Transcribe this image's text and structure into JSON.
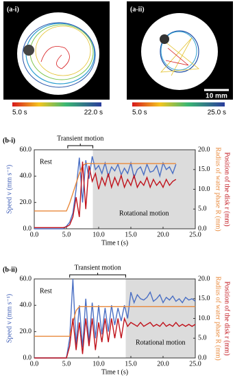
{
  "photos": [
    {
      "label": "(a-i)",
      "colorbar_start": "5.0 s",
      "colorbar_end": "22.0 s"
    },
    {
      "label": "(a-ii)",
      "colorbar_start": "5.0 s",
      "colorbar_end": "25.0 s",
      "scale_bar": "10 mm"
    }
  ],
  "chart_data": [
    {
      "type": "line",
      "panel_label": "(b-i)",
      "x": [
        0,
        0.5,
        1,
        1.5,
        2,
        2.5,
        3,
        3.5,
        4,
        4.5,
        5,
        5.5,
        6,
        6.5,
        7,
        7.5,
        8,
        8.5,
        9,
        9.5,
        10,
        10.5,
        11,
        11.5,
        12,
        12.5,
        13,
        13.5,
        14,
        14.5,
        15,
        15.5,
        16,
        16.5,
        17,
        17.5,
        18,
        18.5,
        19,
        19.5,
        20,
        20.5,
        21,
        21.5,
        22
      ],
      "series": [
        {
          "color": "#4a6fc4",
          "values": [
            0,
            0,
            0,
            0,
            0,
            0,
            0,
            0,
            0,
            0,
            2,
            5,
            12,
            30,
            54,
            20,
            52,
            38,
            55,
            45,
            48,
            42,
            50,
            40,
            47,
            44,
            49,
            41,
            46,
            42,
            50,
            39,
            45,
            47,
            41,
            49,
            43,
            44,
            48,
            40,
            50,
            45,
            47,
            42,
            49
          ]
        },
        {
          "color": "#e8883a",
          "axis": "y2",
          "values": [
            4.5,
            4.5,
            4.5,
            4.5,
            4.5,
            4.5,
            4.5,
            4.5,
            4.5,
            4.5,
            4.5,
            6.5,
            9,
            11.5,
            14,
            16,
            16.5,
            16.5,
            16.5,
            16.5,
            16.5,
            16.5,
            16.5,
            16.5,
            16.5,
            16.5,
            16.5,
            16.5,
            16.5,
            16.5,
            16.5,
            16.5,
            16.5,
            16.5,
            16.5,
            16.5,
            16.5,
            16.5,
            16.5,
            16.5,
            16.5,
            16.5,
            16.5,
            16.5,
            16.5
          ]
        },
        {
          "color": "#c0111a",
          "axis": "y2",
          "values": [
            0.3,
            0.3,
            0.3,
            0.3,
            0.3,
            0.3,
            0.3,
            0.3,
            0.3,
            0.3,
            0.5,
            1,
            3,
            8,
            3,
            17,
            5,
            16,
            12,
            14,
            10,
            13,
            11,
            14,
            10.5,
            13,
            11,
            13.5,
            10.5,
            12.5,
            11,
            13.5,
            10.5,
            12,
            11,
            13,
            10.5,
            12.5,
            11,
            12,
            10.5,
            12.5,
            11,
            12,
            12.5
          ]
        }
      ],
      "xlim": [
        0,
        25
      ],
      "xticks": [
        {
          "value": 0,
          "label": "0.0"
        },
        {
          "value": 5,
          "label": "5.0"
        },
        {
          "value": 10,
          "label": "10.0"
        },
        {
          "value": 15,
          "label": "15.0"
        },
        {
          "value": 20,
          "label": "20.0"
        },
        {
          "value": 25,
          "label": "25.0"
        }
      ],
      "ylim": [
        0,
        60
      ],
      "yticks": [
        {
          "value": 0,
          "label": "0.0"
        },
        {
          "value": 20,
          "label": "20.0"
        },
        {
          "value": 40,
          "label": "40.0"
        },
        {
          "value": 60,
          "label": "60.0"
        }
      ],
      "y2lim": [
        0,
        20
      ],
      "y2ticks": [
        {
          "value": 0,
          "label": "0.0"
        },
        {
          "value": 5,
          "label": "5.0"
        },
        {
          "value": 10,
          "label": "10.0"
        },
        {
          "value": 15,
          "label": "15.0"
        },
        {
          "value": 20,
          "label": "20.0"
        }
      ],
      "x_label": "Time t (s)",
      "y_label": "Speed v (mm s⁻¹)",
      "y2_labels": [
        "Radius of water phase R (mm)",
        "Position of the disk r (mm)"
      ],
      "annotations": {
        "rest": "Rest",
        "transient": "Transient motion",
        "rotational": "Rotational motion"
      },
      "shade_from": 9.1,
      "bracket": [
        5.2,
        9.1
      ]
    },
    {
      "type": "line",
      "panel_label": "(b-ii)",
      "x": [
        0,
        0.5,
        1,
        1.5,
        2,
        2.5,
        3,
        3.5,
        4,
        4.5,
        5,
        5.5,
        6,
        6.5,
        7,
        7.5,
        8,
        8.5,
        9,
        9.5,
        10,
        10.5,
        11,
        11.5,
        12,
        12.5,
        13,
        13.5,
        14,
        14.5,
        15,
        15.5,
        16,
        16.5,
        17,
        17.5,
        18,
        18.5,
        19,
        19.5,
        20,
        20.5,
        21,
        21.5,
        22,
        22.5,
        23,
        23.5,
        24,
        24.5,
        25
      ],
      "series": [
        {
          "color": "#4a6fc4",
          "values": [
            0,
            0,
            0,
            0,
            0,
            0,
            0,
            0,
            0,
            0,
            0,
            15,
            60,
            10,
            40,
            8,
            45,
            12,
            42,
            15,
            40,
            18,
            38,
            20,
            40,
            25,
            38,
            28,
            40,
            30,
            50,
            42,
            48,
            45,
            44,
            46,
            50,
            43,
            45,
            48,
            42,
            46,
            44,
            47,
            43,
            45,
            42,
            46,
            44,
            45,
            43
          ]
        },
        {
          "color": "#e8883a",
          "axis": "y2",
          "values": [
            5.5,
            5.5,
            5.5,
            5.5,
            5.5,
            5.5,
            5.5,
            5.5,
            5.5,
            5.5,
            5.5,
            5.5,
            9,
            12,
            13,
            13,
            13,
            13,
            13,
            13,
            13,
            13,
            13,
            13,
            13,
            13,
            13,
            13,
            13,
            13,
            13,
            13,
            13,
            13,
            13,
            13,
            13,
            13,
            13,
            13,
            13,
            13,
            13,
            13,
            13,
            13,
            13,
            13,
            13,
            13,
            13
          ]
        },
        {
          "color": "#c0111a",
          "axis": "y2",
          "values": [
            0,
            0,
            0,
            0,
            0,
            0,
            0,
            0,
            0,
            0,
            0,
            3,
            10,
            2,
            9,
            1,
            10,
            3,
            10,
            2,
            9,
            4,
            10,
            4,
            10,
            5,
            10,
            5,
            10,
            8,
            9,
            8.5,
            8,
            9,
            8,
            8.5,
            9,
            8,
            8.5,
            8,
            9,
            8,
            8.5,
            8,
            9,
            8,
            8.5,
            8,
            8.5,
            8,
            8.5
          ]
        }
      ],
      "xlim": [
        0,
        25
      ],
      "xticks": [
        {
          "value": 0,
          "label": "0.0"
        },
        {
          "value": 5,
          "label": "5.0"
        },
        {
          "value": 10,
          "label": "10.0"
        },
        {
          "value": 15,
          "label": "15.0"
        },
        {
          "value": 20,
          "label": "20.0"
        },
        {
          "value": 25,
          "label": "25.0"
        }
      ],
      "ylim": [
        0,
        60
      ],
      "yticks": [
        {
          "value": 0,
          "label": "0.0"
        },
        {
          "value": 20,
          "label": "20.0"
        },
        {
          "value": 40,
          "label": "40.0"
        },
        {
          "value": 60,
          "label": "60.0"
        }
      ],
      "y2lim": [
        0,
        20
      ],
      "y2ticks": [
        {
          "value": 0,
          "label": "0.0"
        },
        {
          "value": 5,
          "label": "5.0"
        },
        {
          "value": 10,
          "label": "10.0"
        },
        {
          "value": 15,
          "label": "15.0"
        },
        {
          "value": 20,
          "label": "20.0"
        }
      ],
      "x_label": "Time t (s)",
      "y_label": "Speed v (mm s⁻¹)",
      "y2_labels": [
        "Radius of water phase R (mm)",
        "Position of the disk r (mm)"
      ],
      "annotations": {
        "rest": "Rest",
        "transient": "Transient motion",
        "rotational": "Rotational motion"
      },
      "shade_from": 14.2,
      "bracket": [
        5.5,
        14.2
      ]
    }
  ]
}
